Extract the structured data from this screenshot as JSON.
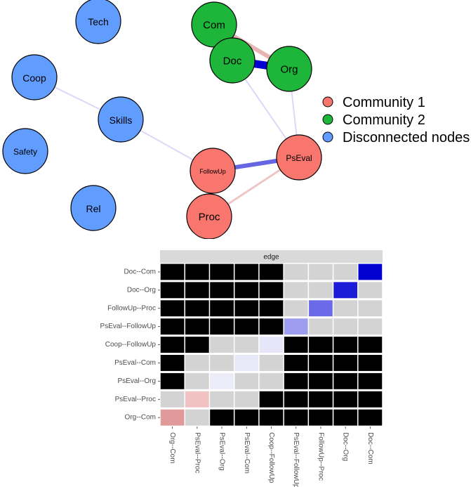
{
  "network": {
    "nodes": [
      {
        "id": "Tech",
        "label": "Tech",
        "group": "disconnected"
      },
      {
        "id": "Coop",
        "label": "Coop",
        "group": "disconnected"
      },
      {
        "id": "Skills",
        "label": "Skills",
        "group": "disconnected"
      },
      {
        "id": "Safety",
        "label": "Safety",
        "group": "disconnected"
      },
      {
        "id": "Rel",
        "label": "Rel",
        "group": "disconnected"
      },
      {
        "id": "Com",
        "label": "Com",
        "group": "community2"
      },
      {
        "id": "Doc",
        "label": "Doc",
        "group": "community2"
      },
      {
        "id": "Org",
        "label": "Org",
        "group": "community2"
      },
      {
        "id": "PsEval",
        "label": "PsEval",
        "group": "community1"
      },
      {
        "id": "FollowUp",
        "label": "FollowUp",
        "group": "community1"
      },
      {
        "id": "Proc",
        "label": "Proc",
        "group": "community1"
      }
    ],
    "edges": [
      {
        "from": "Com",
        "to": "Doc",
        "strength": "strong",
        "sign": "positive"
      },
      {
        "from": "Doc",
        "to": "Org",
        "strength": "strong",
        "sign": "positive"
      },
      {
        "from": "Com",
        "to": "Org",
        "strength": "medium",
        "sign": "negative"
      },
      {
        "from": "FollowUp",
        "to": "Proc",
        "strength": "medium",
        "sign": "positive"
      },
      {
        "from": "PsEval",
        "to": "FollowUp",
        "strength": "medium",
        "sign": "positive"
      },
      {
        "from": "PsEval",
        "to": "Proc",
        "strength": "weak",
        "sign": "negative"
      },
      {
        "from": "Doc",
        "to": "PsEval",
        "strength": "faint",
        "sign": "positive"
      },
      {
        "from": "Org",
        "to": "PsEval",
        "strength": "faint",
        "sign": "positive"
      },
      {
        "from": "Coop",
        "to": "Skills",
        "strength": "faint",
        "sign": "positive"
      },
      {
        "from": "Skills",
        "to": "FollowUp",
        "strength": "faint",
        "sign": "positive"
      }
    ],
    "group_colors": {
      "community1": "#f8766d",
      "community2": "#1db53a",
      "disconnected": "#619cff"
    },
    "edge_colors": {
      "positive": "#0000d0",
      "negative": "#d98080"
    }
  },
  "legend": {
    "items": [
      {
        "label": "Community 1",
        "color": "#f8766d"
      },
      {
        "label": "Community 2",
        "color": "#1db53a"
      },
      {
        "label": "Disconnected nodes",
        "color": "#619cff"
      }
    ]
  },
  "matrix": {
    "strip_title": "edge",
    "rows": [
      "Doc--Com",
      "Doc--Org",
      "FollowUp--Proc",
      "PsEval--FollowUp",
      "Coop--FollowUp",
      "PsEval--Com",
      "PsEval--Org",
      "PsEval--Proc",
      "Org--Com"
    ],
    "columns": [
      "Org--Com",
      "PsEval--Proc",
      "PsEval--Org",
      "PsEval--Com",
      "Coop--FollowUp",
      "PsEval--FollowUp",
      "FollowUp--Proc",
      "Doc--Org",
      "Doc--Com"
    ],
    "cells": [
      [
        "black",
        "black",
        "black",
        "black",
        "black",
        "grey",
        "grey",
        "grey",
        "#0000d0"
      ],
      [
        "black",
        "black",
        "black",
        "black",
        "black",
        "grey",
        "grey",
        "#1b1bd8",
        "grey"
      ],
      [
        "black",
        "black",
        "black",
        "black",
        "black",
        "grey",
        "#6a6ae8",
        "grey",
        "grey"
      ],
      [
        "black",
        "black",
        "black",
        "black",
        "black",
        "#9e9ef0",
        "grey",
        "grey",
        "grey"
      ],
      [
        "black",
        "black",
        "grey",
        "grey",
        "#e6e6f8",
        "black",
        "black",
        "black",
        "black"
      ],
      [
        "black",
        "grey",
        "grey",
        "#e8e8f8",
        "grey",
        "black",
        "black",
        "black",
        "black"
      ],
      [
        "black",
        "grey",
        "#ececf8",
        "grey",
        "grey",
        "black",
        "black",
        "black",
        "black"
      ],
      [
        "grey",
        "#f0c2c2",
        "grey",
        "grey",
        "black",
        "black",
        "black",
        "black",
        "black"
      ],
      [
        "#e09a9a",
        "grey",
        "black",
        "black",
        "black",
        "black",
        "black",
        "black",
        "black"
      ]
    ],
    "palette": {
      "black": "#000000",
      "grey": "#d3d3d3",
      "strip": "#d9d9d9"
    }
  }
}
